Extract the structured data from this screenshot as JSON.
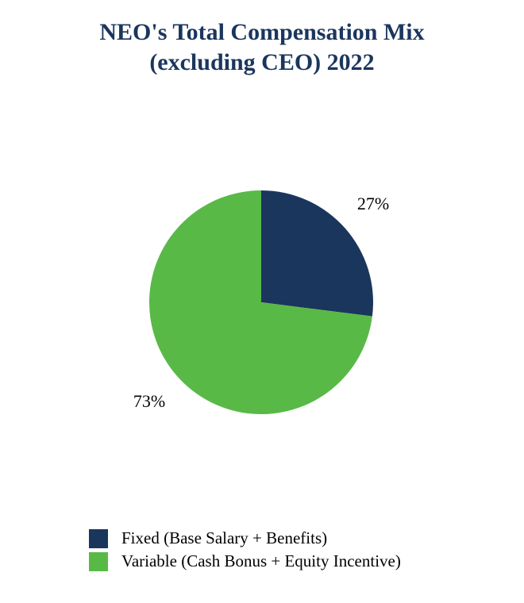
{
  "chart_data": {
    "type": "pie",
    "title_lines": [
      "NEO's Total Compensation Mix",
      "(excluding CEO) 2022"
    ],
    "slices": [
      {
        "label": "Fixed (Base Salary + Benefits)",
        "value": 27,
        "value_label": "27%",
        "color": "#1b365d"
      },
      {
        "label": "Variable (Cash Bonus + Equity Incentive)",
        "value": 73,
        "value_label": "73%",
        "color": "#58b947"
      }
    ],
    "start_angle": "12 o'clock",
    "direction": "clockwise",
    "legend_position": "bottom"
  }
}
